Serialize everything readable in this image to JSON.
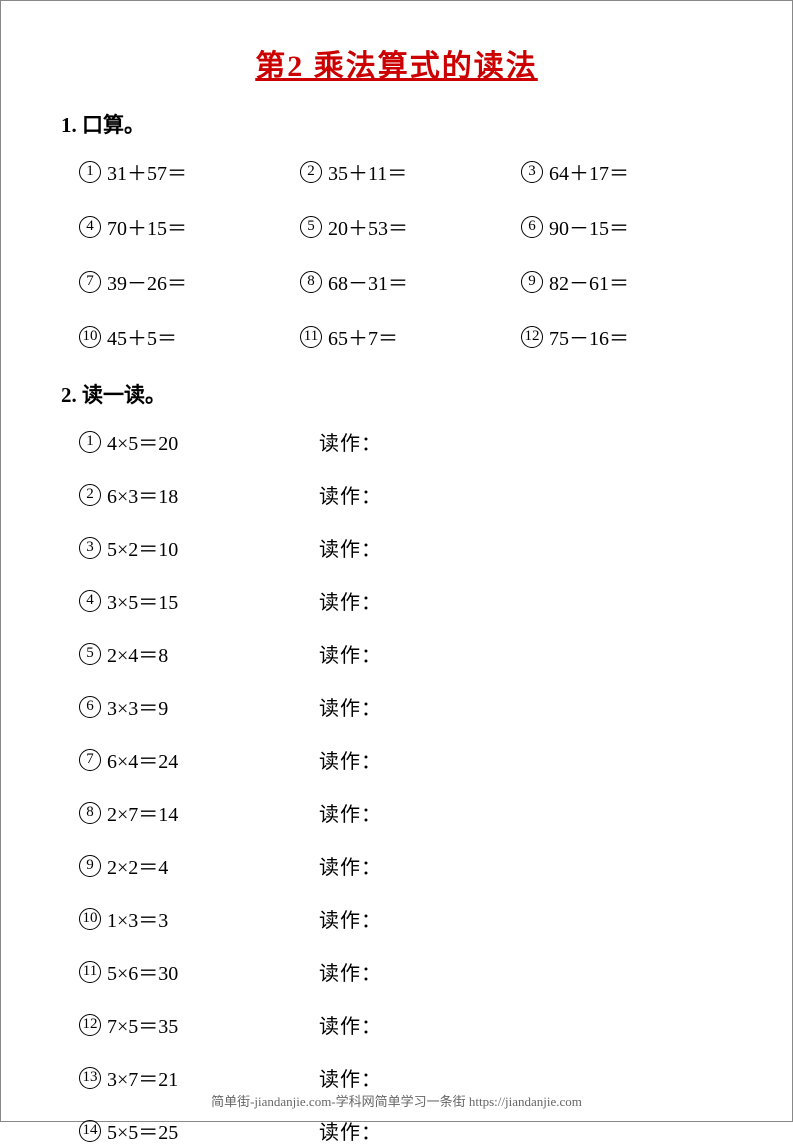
{
  "title": "第2 乘法算式的读法",
  "section1": {
    "header": "1. 口算。",
    "problems": [
      {
        "num": "1",
        "expr": "31＋57＝"
      },
      {
        "num": "2",
        "expr": "35＋11＝"
      },
      {
        "num": "3",
        "expr": "64＋17＝"
      },
      {
        "num": "4",
        "expr": "70＋15＝"
      },
      {
        "num": "5",
        "expr": "20＋53＝"
      },
      {
        "num": "6",
        "expr": "90－15＝"
      },
      {
        "num": "7",
        "expr": "39－26＝"
      },
      {
        "num": "8",
        "expr": "68－31＝"
      },
      {
        "num": "9",
        "expr": "82－61＝"
      },
      {
        "num": "10",
        "expr": "45＋5＝"
      },
      {
        "num": "11",
        "expr": "65＋7＝"
      },
      {
        "num": "12",
        "expr": "75－16＝"
      }
    ]
  },
  "section2": {
    "header": "2. 读一读。",
    "readLabel": "读作：",
    "problems": [
      {
        "num": "1",
        "expr": "4×5＝20"
      },
      {
        "num": "2",
        "expr": "6×3＝18"
      },
      {
        "num": "3",
        "expr": "5×2＝10"
      },
      {
        "num": "4",
        "expr": "3×5＝15"
      },
      {
        "num": "5",
        "expr": "2×4＝8"
      },
      {
        "num": "6",
        "expr": "3×3＝9"
      },
      {
        "num": "7",
        "expr": "6×4＝24"
      },
      {
        "num": "8",
        "expr": "2×7＝14"
      },
      {
        "num": "9",
        "expr": "2×2＝4"
      },
      {
        "num": "10",
        "expr": "1×3＝3"
      },
      {
        "num": "11",
        "expr": "5×6＝30"
      },
      {
        "num": "12",
        "expr": "7×5＝35"
      },
      {
        "num": "13",
        "expr": "3×7＝21"
      },
      {
        "num": "14",
        "expr": "5×5＝25"
      }
    ]
  },
  "footer": "简单街-jiandanjie.com-学科网简单学习一条街 https://jiandanjie.com"
}
